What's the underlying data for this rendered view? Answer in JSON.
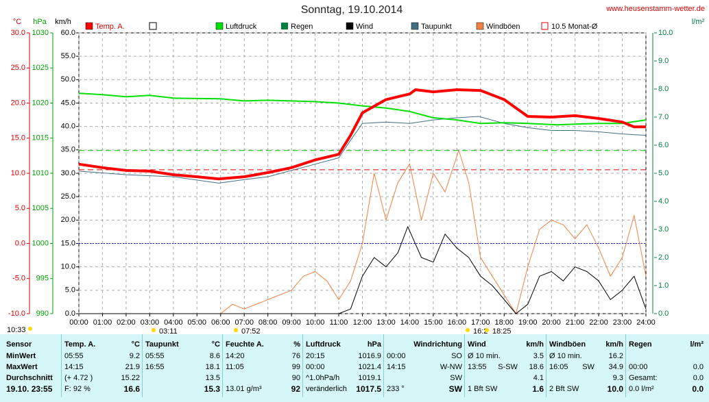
{
  "chart_data": {
    "type": "line",
    "title": "Sonntag, 19.10.2014",
    "site": "www.heusenstamm-wetter.de",
    "units": {
      "y3": "°C",
      "y2": "hPa",
      "y": "km/h",
      "y4": "l/m²"
    },
    "xlim": [
      0,
      24
    ],
    "xticks": [
      {
        "value": 0,
        "label": "00:00"
      },
      {
        "value": 1,
        "label": "01:00"
      },
      {
        "value": 2,
        "label": "02:00"
      },
      {
        "value": 3,
        "label": "03:00"
      },
      {
        "value": 4,
        "label": "04:00"
      },
      {
        "value": 5,
        "label": "05:00"
      },
      {
        "value": 6,
        "label": "06:00"
      },
      {
        "value": 7,
        "label": "07:00"
      },
      {
        "value": 8,
        "label": "08:00"
      },
      {
        "value": 9,
        "label": "09:00"
      },
      {
        "value": 10,
        "label": "10:00"
      },
      {
        "value": 11,
        "label": "11:00"
      },
      {
        "value": 12,
        "label": "12:00"
      },
      {
        "value": 13,
        "label": "13:00"
      },
      {
        "value": 14,
        "label": "14:00"
      },
      {
        "value": 15,
        "label": "15:00"
      },
      {
        "value": 16,
        "label": "16:00"
      },
      {
        "value": 17,
        "label": "17:00"
      },
      {
        "value": 18,
        "label": "18:00"
      },
      {
        "value": 19,
        "label": "19:00"
      },
      {
        "value": 20,
        "label": "20:00"
      },
      {
        "value": 21,
        "label": "21:00"
      },
      {
        "value": 22,
        "label": "22:00"
      },
      {
        "value": 23,
        "label": "23:00"
      },
      {
        "value": 24,
        "label": "24:00"
      }
    ],
    "ylim": [
      0,
      60
    ],
    "yticks": [
      {
        "value": 0,
        "label": "0.0"
      },
      {
        "value": 5,
        "label": "5.0"
      },
      {
        "value": 10,
        "label": "10.0"
      },
      {
        "value": 15,
        "label": "15.0"
      },
      {
        "value": 20,
        "label": "20.0"
      },
      {
        "value": 25,
        "label": "25.0"
      },
      {
        "value": 30,
        "label": "30.0"
      },
      {
        "value": 35,
        "label": "35.0"
      },
      {
        "value": 40,
        "label": "40.0"
      },
      {
        "value": 45,
        "label": "45.0"
      },
      {
        "value": 50,
        "label": "50.0"
      },
      {
        "value": 55,
        "label": "55.0"
      },
      {
        "value": 60,
        "label": "60.0"
      }
    ],
    "y2lim": [
      990,
      1030
    ],
    "y2ticks": [
      990,
      995,
      1000,
      1005,
      1010,
      1015,
      1020,
      1025,
      1030
    ],
    "y3lim": [
      -10,
      30
    ],
    "y3ticks": [
      {
        "value": -10,
        "label": "-10.0"
      },
      {
        "value": -5,
        "label": "-5.0"
      },
      {
        "value": 0,
        "label": "0.0"
      },
      {
        "value": 5,
        "label": "5.0"
      },
      {
        "value": 10,
        "label": "10.0"
      },
      {
        "value": 15,
        "label": "15.0"
      },
      {
        "value": 20,
        "label": "20.0"
      },
      {
        "value": 25,
        "label": "25.0"
      },
      {
        "value": 30,
        "label": "30.0"
      }
    ],
    "y4lim": [
      0,
      10
    ],
    "y4ticks": [
      {
        "value": 0,
        "label": "0.0"
      },
      {
        "value": 1,
        "label": "1.0"
      },
      {
        "value": 2,
        "label": "2.0"
      },
      {
        "value": 3,
        "label": "3.0"
      },
      {
        "value": 4,
        "label": "4.0"
      },
      {
        "value": 5,
        "label": "5.0"
      },
      {
        "value": 6,
        "label": "6.0"
      },
      {
        "value": 7,
        "label": "7.0"
      },
      {
        "value": 8,
        "label": "8.0"
      },
      {
        "value": 9,
        "label": "9.0"
      },
      {
        "value": 10,
        "label": "10.0"
      }
    ],
    "grid": true,
    "series": [
      {
        "name": "Temp. A.",
        "color": "#ff0000",
        "axis": "y3",
        "width": 4,
        "x": [
          0,
          1,
          2,
          3,
          4,
          5,
          5.92,
          7,
          8,
          9,
          10,
          11,
          11.5,
          12,
          13,
          14,
          14.25,
          15,
          16,
          17,
          18,
          18.5,
          19,
          20,
          21,
          22,
          23,
          23.5,
          24
        ],
        "values": [
          11.3,
          10.8,
          10.4,
          10.3,
          9.8,
          9.5,
          9.2,
          9.5,
          10.1,
          10.8,
          11.9,
          12.7,
          15.4,
          18.6,
          20.5,
          21.3,
          21.9,
          21.6,
          21.9,
          21.8,
          20.5,
          19.3,
          18.1,
          18.0,
          18.2,
          17.8,
          17.3,
          16.6,
          16.6
        ]
      },
      {
        "name": "Luftdruck",
        "color": "#00e000",
        "axis": "y2",
        "width": 2,
        "x": [
          0,
          1,
          2,
          3,
          4,
          6,
          7,
          8,
          10,
          11,
          12,
          13,
          14,
          15,
          16,
          17,
          18,
          19,
          20.25,
          21,
          22,
          23,
          24
        ],
        "values": [
          1021.4,
          1021.2,
          1020.9,
          1021.1,
          1020.7,
          1020.6,
          1020.3,
          1020.4,
          1020.2,
          1020.0,
          1019.6,
          1019.3,
          1018.8,
          1017.9,
          1017.6,
          1017.1,
          1017.2,
          1017.1,
          1016.9,
          1017.0,
          1017.1,
          1017.1,
          1017.6
        ]
      },
      {
        "name": "Wind",
        "color": "#000000",
        "axis": "y",
        "width": 1,
        "x": [
          0,
          11,
          11.5,
          12,
          12.5,
          13,
          13.5,
          13.92,
          14.5,
          15,
          15.5,
          16,
          16.5,
          17,
          17.5,
          18,
          18.5,
          19,
          19.5,
          20,
          20.5,
          21,
          21.5,
          22,
          22.5,
          23,
          23.5,
          24
        ],
        "values": [
          0,
          0,
          1,
          8,
          12,
          10,
          13,
          18.6,
          12,
          11,
          17,
          14,
          12,
          8,
          6,
          3,
          0,
          2,
          8,
          9,
          7,
          10,
          9,
          7,
          3,
          5,
          8,
          1
        ]
      },
      {
        "name": "Taupunkt",
        "color": "#407080",
        "axis": "y3",
        "width": 1,
        "x": [
          0,
          2,
          4,
          5.92,
          7,
          8,
          10,
          11,
          11.5,
          12,
          13,
          14,
          15,
          16,
          16.92,
          18,
          19,
          20,
          21,
          22,
          23,
          24
        ],
        "values": [
          10.3,
          9.8,
          9.5,
          8.6,
          9.1,
          9.5,
          11.3,
          12.2,
          14.7,
          17.1,
          17.3,
          17.1,
          17.6,
          17.9,
          18.1,
          17.1,
          16.5,
          16.1,
          16.1,
          15.9,
          15.6,
          15.4
        ]
      },
      {
        "name": "Windböen",
        "color": "#f08040",
        "axis": "y",
        "width": 1,
        "x": [
          0,
          6,
          6.5,
          7,
          8,
          9,
          9.5,
          10,
          10.5,
          11,
          11.5,
          12,
          12.5,
          13,
          13.5,
          14,
          14.5,
          15,
          15.5,
          16.08,
          16.5,
          17,
          17.5,
          18,
          18.5,
          19,
          19.5,
          20,
          20.5,
          21,
          21.5,
          22,
          22.5,
          23,
          23.5,
          24
        ],
        "values": [
          0,
          0,
          2,
          1,
          3,
          5,
          8,
          9,
          7,
          3,
          7,
          15,
          30,
          20,
          28,
          32,
          20,
          30,
          26,
          34.9,
          28,
          12,
          8,
          4,
          0,
          10,
          18,
          20,
          19,
          16,
          19,
          14,
          8,
          12,
          21,
          8
        ]
      }
    ],
    "extra_legend": [
      {
        "name": "Regen",
        "color": "#008040"
      }
    ],
    "reference_lines": [
      {
        "axis": "y3",
        "value": 10.5,
        "color": "#e00000",
        "label": "10.5 Monat-Ø"
      },
      {
        "axis": "y2",
        "value": 1013.25,
        "color": "#00c000"
      },
      {
        "axis": "y3",
        "value": 0,
        "color": "#0000ff"
      }
    ],
    "annotations": [
      "10:33",
      "03:11",
      "07:52",
      "16:2",
      "18:25"
    ]
  },
  "table": {
    "header": [
      [
        "Sensor"
      ],
      [
        "Temp. A.",
        "°C"
      ],
      [
        "Taupunkt",
        "°C"
      ],
      [
        "Feuchte A.",
        "%"
      ],
      [
        "Luftdruck",
        "hPa"
      ],
      [
        "Windrichtung"
      ],
      [
        "Wind",
        "km/h"
      ],
      [
        "Windböen",
        "km/h"
      ],
      [
        "Regen",
        "l/m²"
      ]
    ],
    "rows": [
      [
        [
          "MinWert"
        ],
        [
          "05:55",
          "9.2"
        ],
        [
          "05:55",
          "8.6"
        ],
        [
          "14:20",
          "76"
        ],
        [
          "20:15",
          "1016.9"
        ],
        [
          "00:00",
          "SO"
        ],
        [
          "Ø 10 min.",
          "3.5"
        ],
        [
          "Ø 10 min.",
          "16.2"
        ],
        []
      ],
      [
        [
          "MaxWert"
        ],
        [
          "14:15",
          "21.9"
        ],
        [
          "16:55",
          "18.1"
        ],
        [
          "11:05",
          "99"
        ],
        [
          "00:00",
          "1021.4"
        ],
        [
          "14:15",
          "W-NW"
        ],
        [
          "13:55",
          "S-SW",
          "18.6"
        ],
        [
          "16:05",
          "SW",
          "34.9"
        ],
        [
          "00:00",
          "0.0"
        ]
      ],
      [
        [
          "Durchschnitt"
        ],
        [
          "(+ 4.72 )",
          "15.22"
        ],
        [
          "13.5"
        ],
        [
          "90"
        ],
        [
          "^1.0hPa/h",
          "1019.1"
        ],
        [
          "SW"
        ],
        [
          "4.1"
        ],
        [
          "9.3"
        ],
        [
          "Gesamt:",
          "0.0"
        ]
      ],
      [
        [
          "19.10. 23:55"
        ],
        [
          "F: 92 %",
          "16.6"
        ],
        [
          "15.3"
        ],
        [
          "13.01 g/m³",
          "92"
        ],
        [
          "veränderlich",
          "1017.5"
        ],
        [
          "233 °",
          "SW"
        ],
        [
          "1 Bft SW",
          "1.6"
        ],
        [
          "2 Bft SW",
          "10.0"
        ],
        [
          "0.0 l/m²",
          "0.0"
        ]
      ]
    ]
  }
}
